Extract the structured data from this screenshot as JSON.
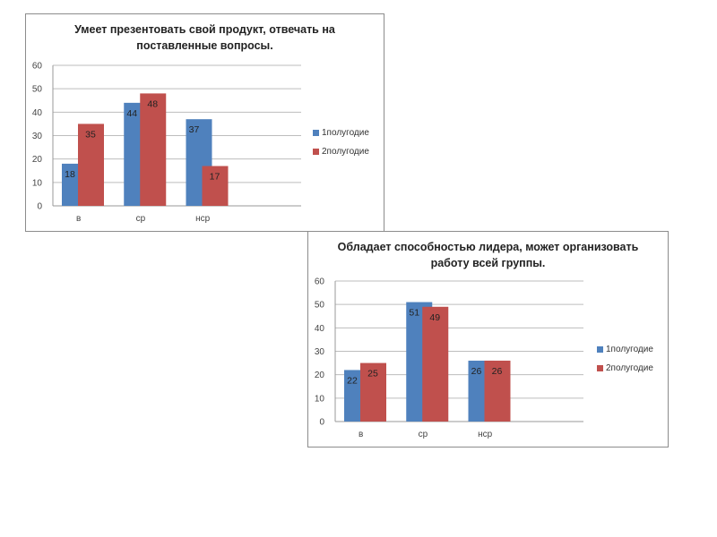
{
  "chart_data": [
    {
      "type": "bar",
      "title_line1": "Умеет презентовать свой продукт, отвечать на",
      "title_line2": "поставленные вопросы.",
      "categories": [
        "в",
        "ср",
        "нср",
        ""
      ],
      "series": [
        {
          "name": "1полугодие",
          "color": "#4f81bd",
          "values": [
            18,
            44,
            37,
            null
          ]
        },
        {
          "name": "2полугодие",
          "color": "#c0504d",
          "values": [
            35,
            48,
            17,
            null
          ]
        }
      ],
      "yticks": [
        "0",
        "10",
        "20",
        "30",
        "40",
        "50",
        "60"
      ],
      "ylim": [
        0,
        60
      ],
      "grid": true,
      "legend_position": "right"
    },
    {
      "type": "bar",
      "title_line1": "Обладает способностью  лидера, может организовать",
      "title_line2": "работу всей группы.",
      "categories": [
        "в",
        "ср",
        "нср",
        ""
      ],
      "series": [
        {
          "name": "1полугодие",
          "color": "#4f81bd",
          "values": [
            22,
            51,
            26,
            null
          ]
        },
        {
          "name": "2полугодие",
          "color": "#c0504d",
          "values": [
            25,
            49,
            26,
            null
          ]
        }
      ],
      "yticks": [
        "0",
        "10",
        "20",
        "30",
        "40",
        "50",
        "60"
      ],
      "ylim": [
        0,
        60
      ],
      "grid": true,
      "legend_position": "right"
    }
  ]
}
